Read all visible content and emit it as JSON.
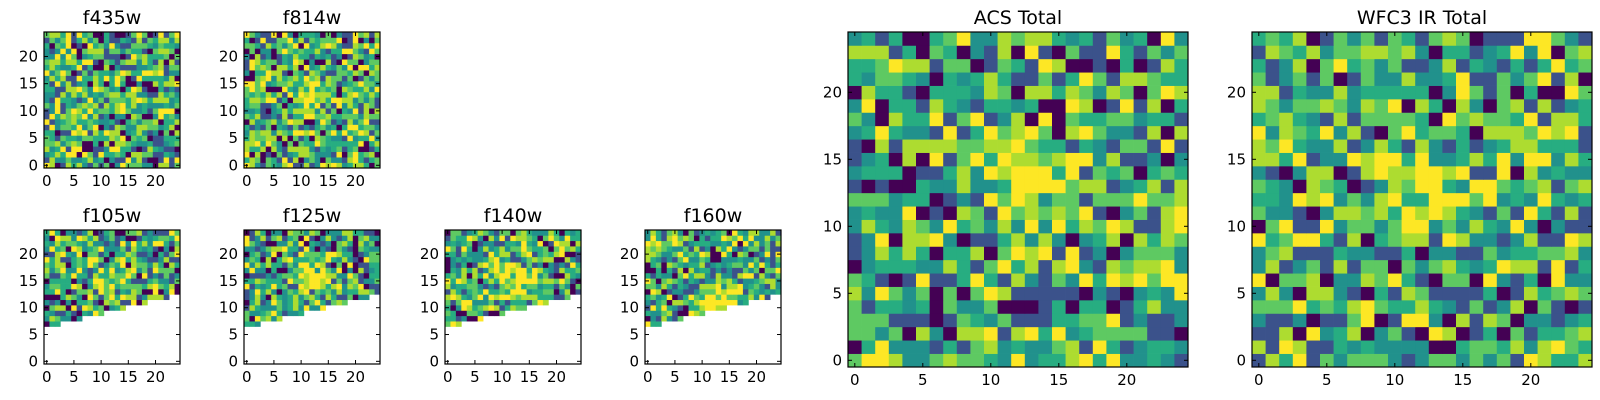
{
  "figure": {
    "palette": [
      "#440154",
      "#3b528b",
      "#21918c",
      "#27ad81",
      "#5ec962",
      "#addc30",
      "#fde725"
    ]
  },
  "chart_data": [
    {
      "type": "heatmap",
      "title": "f435w",
      "grid": [
        25,
        25
      ],
      "mask": "none",
      "hotspot": null,
      "xticks": [
        "0",
        "5",
        "10",
        "15",
        "20"
      ],
      "yticks": [
        "0",
        "5",
        "10",
        "15",
        "20"
      ],
      "xlim": [
        0,
        25
      ],
      "ylim": [
        0,
        25
      ]
    },
    {
      "type": "heatmap",
      "title": "f814w",
      "grid": [
        25,
        25
      ],
      "mask": "none",
      "hotspot": [
        12,
        12
      ],
      "xticks": [
        "0",
        "5",
        "10",
        "15",
        "20"
      ],
      "yticks": [
        "0",
        "5",
        "10",
        "15",
        "20"
      ],
      "xlim": [
        0,
        25
      ],
      "ylim": [
        0,
        25
      ]
    },
    {
      "type": "heatmap",
      "title": "f105w",
      "grid": [
        25,
        25
      ],
      "mask": "lower-wedge",
      "hotspot": [
        12,
        15
      ],
      "xticks": [
        "0",
        "5",
        "10",
        "15",
        "20"
      ],
      "yticks": [
        "0",
        "5",
        "10",
        "15",
        "20"
      ],
      "xlim": [
        0,
        25
      ],
      "ylim": [
        0,
        25
      ]
    },
    {
      "type": "heatmap",
      "title": "f125w",
      "grid": [
        25,
        25
      ],
      "mask": "lower-wedge",
      "hotspot": [
        12,
        15
      ],
      "xticks": [
        "0",
        "5",
        "10",
        "15",
        "20"
      ],
      "yticks": [
        "0",
        "5",
        "10",
        "15",
        "20"
      ],
      "xlim": [
        0,
        25
      ],
      "ylim": [
        0,
        25
      ]
    },
    {
      "type": "heatmap",
      "title": "f140w",
      "grid": [
        25,
        25
      ],
      "mask": "lower-wedge",
      "hotspot": [
        12,
        15
      ],
      "xticks": [
        "0",
        "5",
        "10",
        "15",
        "20"
      ],
      "yticks": [
        "0",
        "5",
        "10",
        "15",
        "20"
      ],
      "xlim": [
        0,
        25
      ],
      "ylim": [
        0,
        25
      ]
    },
    {
      "type": "heatmap",
      "title": "f160w",
      "grid": [
        25,
        25
      ],
      "mask": "lower-wedge",
      "hotspot": [
        13,
        11
      ],
      "xticks": [
        "0",
        "5",
        "10",
        "15",
        "20"
      ],
      "yticks": [
        "0",
        "5",
        "10",
        "15",
        "20"
      ],
      "xlim": [
        0,
        25
      ],
      "ylim": [
        0,
        25
      ]
    },
    {
      "type": "heatmap",
      "title": "ACS Total",
      "grid": [
        25,
        25
      ],
      "mask": "none",
      "hotspot": [
        13,
        13
      ],
      "xticks": [
        "0",
        "5",
        "10",
        "15",
        "20"
      ],
      "yticks": [
        "0",
        "5",
        "10",
        "15",
        "20"
      ],
      "xlim": [
        0,
        25
      ],
      "ylim": [
        0,
        25
      ]
    },
    {
      "type": "heatmap",
      "title": "WFC3 IR Total",
      "grid": [
        25,
        25
      ],
      "mask": "none",
      "hotspot": [
        12,
        13
      ],
      "xticks": [
        "0",
        "5",
        "10",
        "15",
        "20"
      ],
      "yticks": [
        "0",
        "5",
        "10",
        "15",
        "20"
      ],
      "xlim": [
        0,
        25
      ],
      "ylim": [
        0,
        25
      ]
    }
  ]
}
